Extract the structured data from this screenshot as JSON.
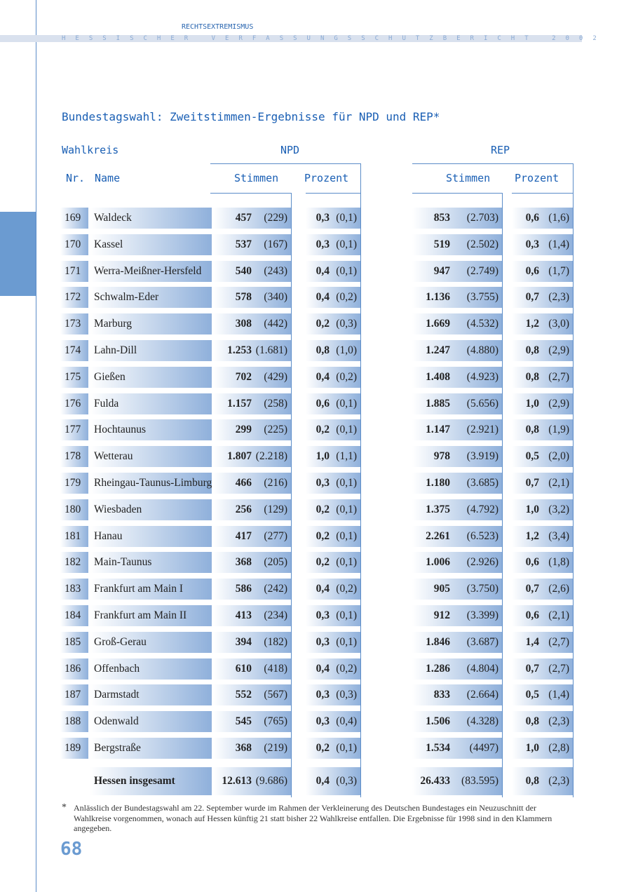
{
  "header": {
    "section": "RECHTSEXTREMISMUS",
    "band": "HESSISCHER VERFASSUNGSSCHUTZBERICHT 2002"
  },
  "title": "Bundestagswahl: Zweitstimmen-Ergebnisse für NPD und REP*",
  "columns": {
    "wahlkreis": "Wahlkreis",
    "npd": "NPD",
    "rep": "REP",
    "nr": "Nr.",
    "name": "Name",
    "stimmen": "Stimmen",
    "prozent": "Prozent"
  },
  "rows": [
    {
      "nr": "169",
      "name": "Waldeck",
      "npd_s": "457",
      "npd_s98": "(229)",
      "npd_p": "0,3",
      "npd_p98": "(0,1)",
      "rep_s": "853",
      "rep_s98": "(2.703)",
      "rep_p": "0,6",
      "rep_p98": "(1,6)"
    },
    {
      "nr": "170",
      "name": "Kassel",
      "npd_s": "537",
      "npd_s98": "(167)",
      "npd_p": "0,3",
      "npd_p98": "(0,1)",
      "rep_s": "519",
      "rep_s98": "(2.502)",
      "rep_p": "0,3",
      "rep_p98": "(1,4)"
    },
    {
      "nr": "171",
      "name": "Werra-Meißner-Hersfeld",
      "npd_s": "540",
      "npd_s98": "(243)",
      "npd_p": "0,4",
      "npd_p98": "(0,1)",
      "rep_s": "947",
      "rep_s98": "(2.749)",
      "rep_p": "0,6",
      "rep_p98": "(1,7)"
    },
    {
      "nr": "172",
      "name": "Schwalm-Eder",
      "npd_s": "578",
      "npd_s98": "(340)",
      "npd_p": "0,4",
      "npd_p98": "(0,2)",
      "rep_s": "1.136",
      "rep_s98": "(3.755)",
      "rep_p": "0,7",
      "rep_p98": "(2,3)"
    },
    {
      "nr": "173",
      "name": "Marburg",
      "npd_s": "308",
      "npd_s98": "(442)",
      "npd_p": "0,2",
      "npd_p98": "(0,3)",
      "rep_s": "1.669",
      "rep_s98": "(4.532)",
      "rep_p": "1,2",
      "rep_p98": "(3,0)"
    },
    {
      "nr": "174",
      "name": "Lahn-Dill",
      "npd_s": "1.253",
      "npd_s98": "(1.681)",
      "npd_p": "0,8",
      "npd_p98": "(1,0)",
      "rep_s": "1.247",
      "rep_s98": "(4.880)",
      "rep_p": "0,8",
      "rep_p98": "(2,9)"
    },
    {
      "nr": "175",
      "name": "Gießen",
      "npd_s": "702",
      "npd_s98": "(429)",
      "npd_p": "0,4",
      "npd_p98": "(0,2)",
      "rep_s": "1.408",
      "rep_s98": "(4.923)",
      "rep_p": "0,8",
      "rep_p98": "(2,7)"
    },
    {
      "nr": "176",
      "name": "Fulda",
      "npd_s": "1.157",
      "npd_s98": "(258)",
      "npd_p": "0,6",
      "npd_p98": "(0,1)",
      "rep_s": "1.885",
      "rep_s98": "(5.656)",
      "rep_p": "1,0",
      "rep_p98": "(2,9)"
    },
    {
      "nr": "177",
      "name": "Hochtaunus",
      "npd_s": "299",
      "npd_s98": "(225)",
      "npd_p": "0,2",
      "npd_p98": "(0,1)",
      "rep_s": "1.147",
      "rep_s98": "(2.921)",
      "rep_p": "0,8",
      "rep_p98": "(1,9)"
    },
    {
      "nr": "178",
      "name": "Wetterau",
      "npd_s": "1.807",
      "npd_s98": "(2.218)",
      "npd_p": "1,0",
      "npd_p98": "(1,1)",
      "rep_s": "978",
      "rep_s98": "(3.919)",
      "rep_p": "0,5",
      "rep_p98": "(2,0)"
    },
    {
      "nr": "179",
      "name": "Rheingau-Taunus-Limburg",
      "npd_s": "466",
      "npd_s98": "(216)",
      "npd_p": "0,3",
      "npd_p98": "(0,1)",
      "rep_s": "1.180",
      "rep_s98": "(3.685)",
      "rep_p": "0,7",
      "rep_p98": "(2,1)"
    },
    {
      "nr": "180",
      "name": "Wiesbaden",
      "npd_s": "256",
      "npd_s98": "(129)",
      "npd_p": "0,2",
      "npd_p98": "(0,1)",
      "rep_s": "1.375",
      "rep_s98": "(4.792)",
      "rep_p": "1,0",
      "rep_p98": "(3,2)"
    },
    {
      "nr": "181",
      "name": "Hanau",
      "npd_s": "417",
      "npd_s98": "(277)",
      "npd_p": "0,2",
      "npd_p98": "(0,1)",
      "rep_s": "2.261",
      "rep_s98": "(6.523)",
      "rep_p": "1,2",
      "rep_p98": "(3,4)"
    },
    {
      "nr": "182",
      "name": "Main-Taunus",
      "npd_s": "368",
      "npd_s98": "(205)",
      "npd_p": "0,2",
      "npd_p98": "(0,1)",
      "rep_s": "1.006",
      "rep_s98": "(2.926)",
      "rep_p": "0,6",
      "rep_p98": "(1,8)"
    },
    {
      "nr": "183",
      "name": "Frankfurt am Main I",
      "npd_s": "586",
      "npd_s98": "(242)",
      "npd_p": "0,4",
      "npd_p98": "(0,2)",
      "rep_s": "905",
      "rep_s98": "(3.750)",
      "rep_p": "0,7",
      "rep_p98": "(2,6)"
    },
    {
      "nr": "184",
      "name": "Frankfurt am Main II",
      "npd_s": "413",
      "npd_s98": "(234)",
      "npd_p": "0,3",
      "npd_p98": "(0,1)",
      "rep_s": "912",
      "rep_s98": "(3.399)",
      "rep_p": "0,6",
      "rep_p98": "(2,1)"
    },
    {
      "nr": "185",
      "name": "Groß-Gerau",
      "npd_s": "394",
      "npd_s98": "(182)",
      "npd_p": "0,3",
      "npd_p98": "(0,1)",
      "rep_s": "1.846",
      "rep_s98": "(3.687)",
      "rep_p": "1,4",
      "rep_p98": "(2,7)"
    },
    {
      "nr": "186",
      "name": "Offenbach",
      "npd_s": "610",
      "npd_s98": "(418)",
      "npd_p": "0,4",
      "npd_p98": "(0,2)",
      "rep_s": "1.286",
      "rep_s98": "(4.804)",
      "rep_p": "0,7",
      "rep_p98": "(2,7)"
    },
    {
      "nr": "187",
      "name": "Darmstadt",
      "npd_s": "552",
      "npd_s98": "(567)",
      "npd_p": "0,3",
      "npd_p98": "(0,3)",
      "rep_s": "833",
      "rep_s98": "(2.664)",
      "rep_p": "0,5",
      "rep_p98": "(1,4)"
    },
    {
      "nr": "188",
      "name": "Odenwald",
      "npd_s": "545",
      "npd_s98": "(765)",
      "npd_p": "0,3",
      "npd_p98": "(0,4)",
      "rep_s": "1.506",
      "rep_s98": "(4.328)",
      "rep_p": "0,8",
      "rep_p98": "(2,3)"
    },
    {
      "nr": "189",
      "name": "Bergstraße",
      "npd_s": "368",
      "npd_s98": "(219)",
      "npd_p": "0,2",
      "npd_p98": "(0,1)",
      "rep_s": "1.534",
      "rep_s98": "(4497)",
      "rep_p": "1,0",
      "rep_p98": "(2,8)"
    }
  ],
  "total": {
    "name": "Hessen insgesamt",
    "npd_s": "12.613",
    "npd_s98": "(9.686)",
    "npd_p": "0,4",
    "npd_p98": "(0,3)",
    "rep_s": "26.433",
    "rep_s98": "(83.595)",
    "rep_p": "0,8",
    "rep_p98": "(2,3)"
  },
  "footnote": {
    "mark": "*",
    "text": "Anlässlich der Bundestagswahl am 22. September wurde im Rahmen der Verkleinerung des Deutschen Bundestages ein Neuzuschnitt der Wahlkreise vorgenommen, wonach auf Hessen künftig 21 statt bisher 22 Wahlkreise entfallen. Die Ergebnisse für 1998 sind in den Klammern angegeben."
  },
  "page_number": "68"
}
